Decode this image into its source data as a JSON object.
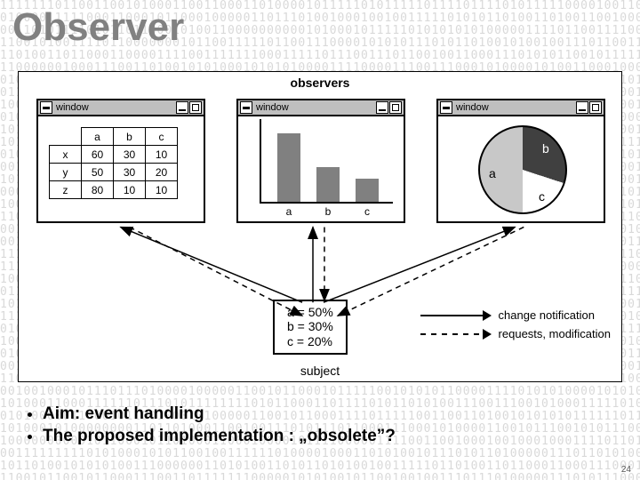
{
  "title": "Observer",
  "observers_label": "observers",
  "subject_label": "subject",
  "window_caption": "window",
  "table": {
    "cols": [
      "a",
      "b",
      "c"
    ],
    "rows": [
      "x",
      "y",
      "z"
    ],
    "cells": [
      [
        60,
        30,
        10
      ],
      [
        50,
        30,
        20
      ],
      [
        80,
        10,
        10
      ]
    ]
  },
  "bar_chart": {
    "type": "bar",
    "categories": [
      "a",
      "b",
      "c"
    ],
    "values": [
      60,
      30,
      20
    ],
    "ymax": 70,
    "bar_color": "#808080",
    "axis_color": "#000000"
  },
  "pie_chart": {
    "type": "pie",
    "slices": [
      {
        "label": "a",
        "value": 50,
        "color": "#c8c8c8"
      },
      {
        "label": "b",
        "value": 30,
        "color": "#404040"
      },
      {
        "label": "c",
        "value": 20,
        "color": "#ffffff"
      }
    ],
    "border_color": "#000000"
  },
  "subject_box": {
    "lines": [
      "a = 50%",
      "b = 30%",
      "c = 20%"
    ]
  },
  "legend": {
    "solid": "change notification",
    "dashed": "requests, modification"
  },
  "bullets": [
    "Aim: event handling",
    "The proposed implementation : „obsolete”?"
  ],
  "page_number": "24",
  "colors": {
    "title": "#818181",
    "bg_binary": "#d9d9d9",
    "titlebar": "#bfbfbf"
  }
}
